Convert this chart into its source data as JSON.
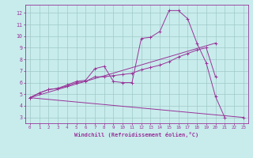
{
  "xlabel": "Windchill (Refroidissement éolien,°C)",
  "background_color": "#c8ecec",
  "grid_color": "#a0c8c8",
  "line_color": "#993399",
  "xlim": [
    -0.5,
    23.5
  ],
  "ylim": [
    2.5,
    12.7
  ],
  "yticks": [
    3,
    4,
    5,
    6,
    7,
    8,
    9,
    10,
    11,
    12
  ],
  "xticks": [
    0,
    1,
    2,
    3,
    4,
    5,
    6,
    7,
    8,
    9,
    10,
    11,
    12,
    13,
    14,
    15,
    16,
    17,
    18,
    19,
    20,
    21,
    22,
    23
  ],
  "line1_x": [
    0,
    1,
    2,
    3,
    4,
    5,
    6,
    7,
    8,
    9,
    10,
    11,
    12,
    13,
    14,
    15,
    16,
    17,
    18,
    19,
    20,
    21
  ],
  "line1_y": [
    4.7,
    5.1,
    5.4,
    5.5,
    5.8,
    6.1,
    6.2,
    7.2,
    7.4,
    6.1,
    6.0,
    6.0,
    9.8,
    9.9,
    10.4,
    12.2,
    12.2,
    11.5,
    9.4,
    7.7,
    4.8,
    3.0
  ],
  "line2_x": [
    0,
    1,
    2,
    3,
    4,
    5,
    6,
    7,
    8,
    9,
    10,
    11,
    12,
    13,
    14,
    15,
    16,
    17,
    18,
    19,
    20
  ],
  "line2_y": [
    4.7,
    5.1,
    5.4,
    5.5,
    5.7,
    6.0,
    6.1,
    6.5,
    6.5,
    6.6,
    6.7,
    6.8,
    7.1,
    7.3,
    7.5,
    7.8,
    8.2,
    8.5,
    8.8,
    9.0,
    6.5
  ],
  "line3_x": [
    0,
    23
  ],
  "line3_y": [
    4.7,
    3.0
  ],
  "line4_x": [
    0,
    20
  ],
  "line4_y": [
    4.7,
    9.4
  ]
}
